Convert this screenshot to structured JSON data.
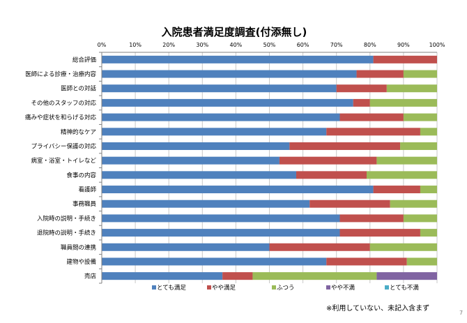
{
  "note": "※利用していない、未記入含まず",
  "page_number": "7",
  "chart_data": {
    "type": "bar",
    "orientation": "horizontal",
    "stacked": "percent",
    "title": "入院患者満足度調査(付添無し)",
    "xlim": [
      0,
      100
    ],
    "x_ticks": [
      "0%",
      "10%",
      "20%",
      "30%",
      "40%",
      "50%",
      "60%",
      "70%",
      "80%",
      "90%",
      "100%"
    ],
    "grid": "vertical",
    "legend_position": "bottom",
    "categories": [
      "総合評価",
      "医師による診療・治療内容",
      "医師との対話",
      "その他のスタッフの対応",
      "痛みや症状を和らげる対応",
      "精神的なケア",
      "プライバシー保護の対応",
      "病室・浴室・トイレなど",
      "食事の内容",
      "看護師",
      "事務職員",
      "入院時の説明・手続き",
      "退院時の説明・手続き",
      "職員間の連携",
      "建物や設備",
      "売店"
    ],
    "series": [
      {
        "name": "とても満足",
        "color": "#4f81bd",
        "values": [
          81,
          76,
          70,
          75,
          71,
          67,
          56,
          53,
          58,
          81,
          62,
          71,
          71,
          50,
          67,
          36
        ]
      },
      {
        "name": "やや満足",
        "color": "#c0504d",
        "values": [
          19,
          14,
          15,
          5,
          19,
          28,
          33,
          29,
          21,
          14,
          24,
          19,
          24,
          30,
          24,
          9
        ]
      },
      {
        "name": "ふつう",
        "color": "#9bbb59",
        "values": [
          0,
          10,
          15,
          20,
          10,
          5,
          11,
          18,
          21,
          5,
          14,
          10,
          5,
          20,
          9,
          37
        ]
      },
      {
        "name": "やや不満",
        "color": "#8064a2",
        "values": [
          0,
          0,
          0,
          0,
          0,
          0,
          0,
          0,
          0,
          0,
          0,
          0,
          0,
          0,
          0,
          18
        ]
      },
      {
        "name": "とても不満",
        "color": "#4bacc6",
        "values": [
          0,
          0,
          0,
          0,
          0,
          0,
          0,
          0,
          0,
          0,
          0,
          0,
          0,
          0,
          0,
          0
        ]
      }
    ]
  }
}
